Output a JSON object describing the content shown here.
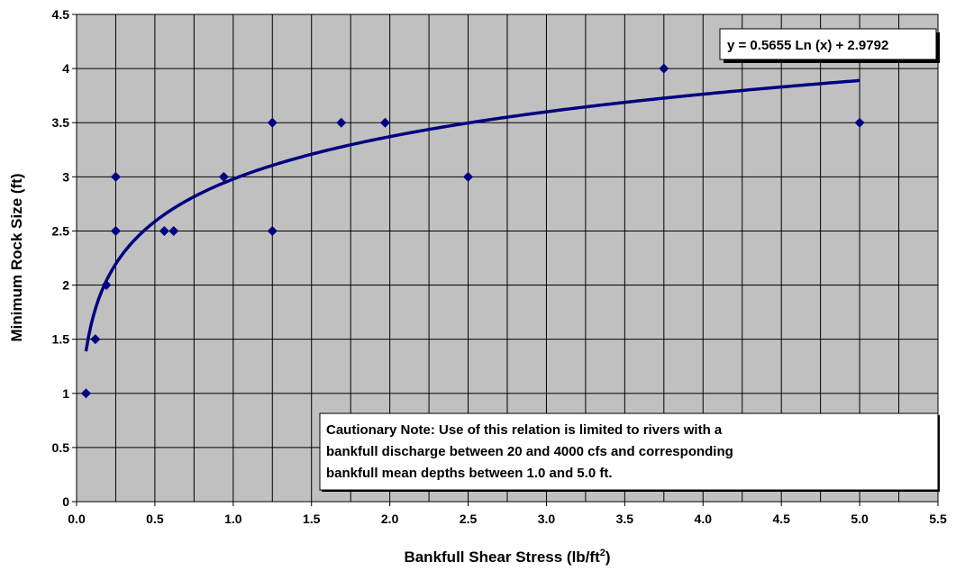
{
  "chart_data": {
    "type": "scatter",
    "xlabel": "Bankfull Shear Stress (lb/ft",
    "xlabel_superscript": "2",
    "xlabel_suffix": ")",
    "ylabel": "Minimum Rock Size (ft)",
    "xlim": [
      0,
      5.5
    ],
    "ylim": [
      0,
      4.5
    ],
    "x_ticks": [
      "0.0",
      "0.5",
      "1.0",
      "1.5",
      "2.0",
      "2.5",
      "3.0",
      "3.5",
      "4.0",
      "4.5",
      "5.0",
      "5.5"
    ],
    "y_ticks": [
      "0",
      "0.5",
      "1",
      "1.5",
      "2",
      "2.5",
      "3",
      "3.5",
      "4",
      "4.5"
    ],
    "grid": true,
    "plot_background": "#c0c0c0",
    "marker_color": "#000080",
    "trendline_color": "#000080",
    "trendline": {
      "type": "logarithmic",
      "a": 0.5655,
      "b": 2.9792,
      "x_range": [
        0.06,
        5.0
      ]
    },
    "equation_label": "y = 0.5655 Ln (x) + 2.9792",
    "note_lines": [
      "Cautionary Note:  Use of this relation is limited to rivers with a",
      "bankfull discharge between 20 and 4000 cfs and corresponding",
      "bankfull mean depths between 1.0 and 5.0 ft."
    ],
    "points": [
      {
        "x": 0.06,
        "y": 1.0
      },
      {
        "x": 0.12,
        "y": 1.5
      },
      {
        "x": 0.19,
        "y": 2.0
      },
      {
        "x": 0.25,
        "y": 3.0
      },
      {
        "x": 0.25,
        "y": 2.5
      },
      {
        "x": 0.56,
        "y": 2.5
      },
      {
        "x": 0.62,
        "y": 2.5
      },
      {
        "x": 0.94,
        "y": 3.0
      },
      {
        "x": 1.25,
        "y": 3.5
      },
      {
        "x": 1.25,
        "y": 2.5
      },
      {
        "x": 1.69,
        "y": 3.5
      },
      {
        "x": 1.97,
        "y": 3.5
      },
      {
        "x": 2.5,
        "y": 3.0
      },
      {
        "x": 3.75,
        "y": 4.0
      },
      {
        "x": 5.0,
        "y": 3.5
      }
    ]
  }
}
